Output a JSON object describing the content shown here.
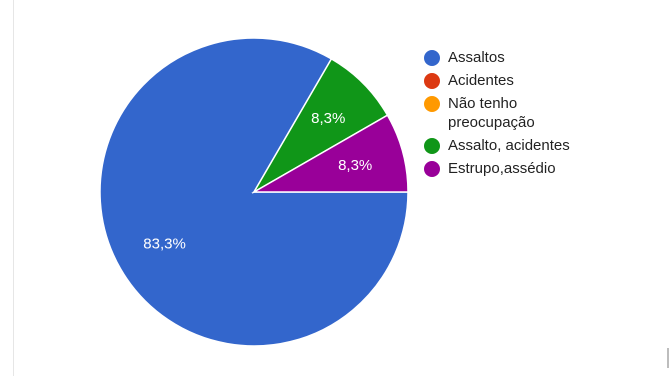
{
  "chart_data": {
    "type": "pie",
    "categories": [
      "Assaltos",
      "Acidentes",
      "Não tenho preocupação",
      "Assalto, acidentes",
      "Estrupo,assédio"
    ],
    "values": [
      83.3,
      0,
      0,
      8.3,
      8.3
    ],
    "data_labels": [
      "83,3%",
      "",
      "",
      "8,3%",
      "8,3%"
    ],
    "colors": [
      "#3366cc",
      "#dc3912",
      "#ff9900",
      "#109618",
      "#990099"
    ],
    "legend_position": "right"
  }
}
